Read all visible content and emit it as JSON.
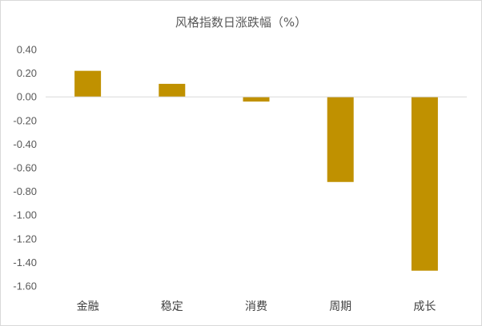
{
  "chart_data": {
    "type": "bar",
    "title": "风格指数日涨跌幅（%）",
    "xlabel": "",
    "ylabel": "",
    "categories": [
      "金融",
      "稳定",
      "消费",
      "周期",
      "成长"
    ],
    "values": [
      0.22,
      0.11,
      -0.04,
      -0.72,
      -1.47
    ],
    "ylim": [
      -1.6,
      0.4
    ],
    "yticks": [
      "0.40",
      "0.20",
      "0.00",
      "-0.20",
      "-0.40",
      "-0.60",
      "-0.80",
      "-1.00",
      "-1.20",
      "-1.40",
      "-1.60"
    ],
    "grid": false,
    "legend": "none",
    "bar_color": "#C09100",
    "axis_color": "#d9d9d9"
  }
}
